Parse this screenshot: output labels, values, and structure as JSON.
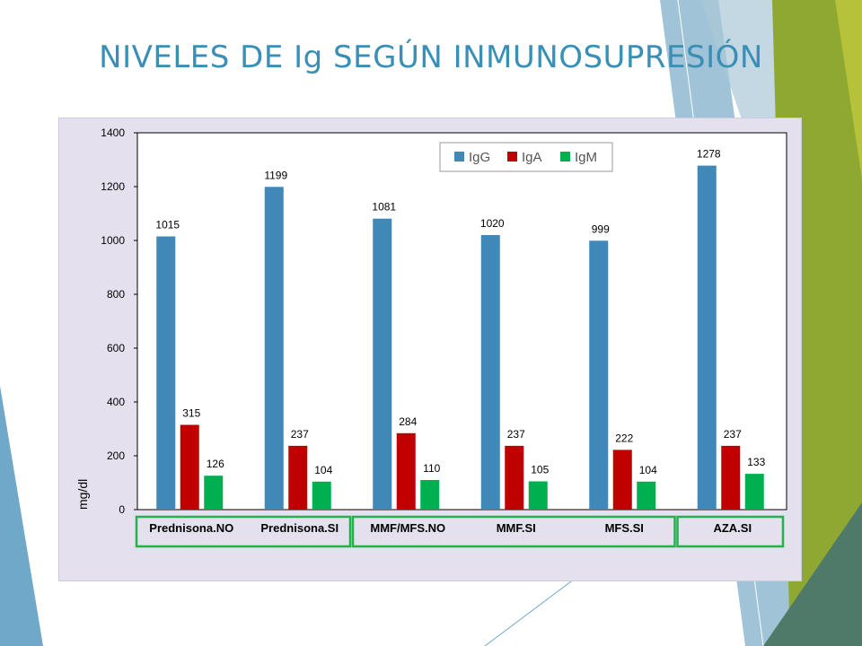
{
  "slide": {
    "title": "NIVELES DE Ig SEGÚN INMUNOSUPRESIÓN"
  },
  "colors": {
    "title": "#3a8fb7",
    "panel_background": "#e4e0ee",
    "group_box": "#22b14c",
    "decor_blue": "#6fa8c8",
    "decor_green": "#8fa832",
    "decor_dark": "#4f7a6a"
  },
  "chart_data": {
    "type": "bar",
    "title": "",
    "xlabel": "",
    "ylabel": "mg/dl",
    "ylim": [
      0,
      1400
    ],
    "yticks": [
      0,
      200,
      400,
      600,
      800,
      1000,
      1200,
      1400
    ],
    "grid": false,
    "legend_position": "top-right",
    "categories": [
      "Prednisona.NO",
      "Prednisona.SI",
      "MMF/MFS.NO",
      "MMF.SI",
      "MFS.SI",
      "AZA.SI"
    ],
    "series": [
      {
        "name": "IgG",
        "color": "#3f88b8",
        "values": [
          1015,
          1199,
          1081,
          1020,
          999,
          1278
        ]
      },
      {
        "name": "IgA",
        "color": "#c00000",
        "values": [
          315,
          237,
          284,
          237,
          222,
          237
        ]
      },
      {
        "name": "IgM",
        "color": "#00b050",
        "values": [
          126,
          104,
          110,
          105,
          104,
          133
        ]
      }
    ],
    "category_groups": [
      [
        "Prednisona.NO",
        "Prednisona.SI"
      ],
      [
        "MMF/MFS.NO",
        "MMF.SI",
        "MFS.SI"
      ],
      [
        "AZA.SI"
      ]
    ]
  }
}
